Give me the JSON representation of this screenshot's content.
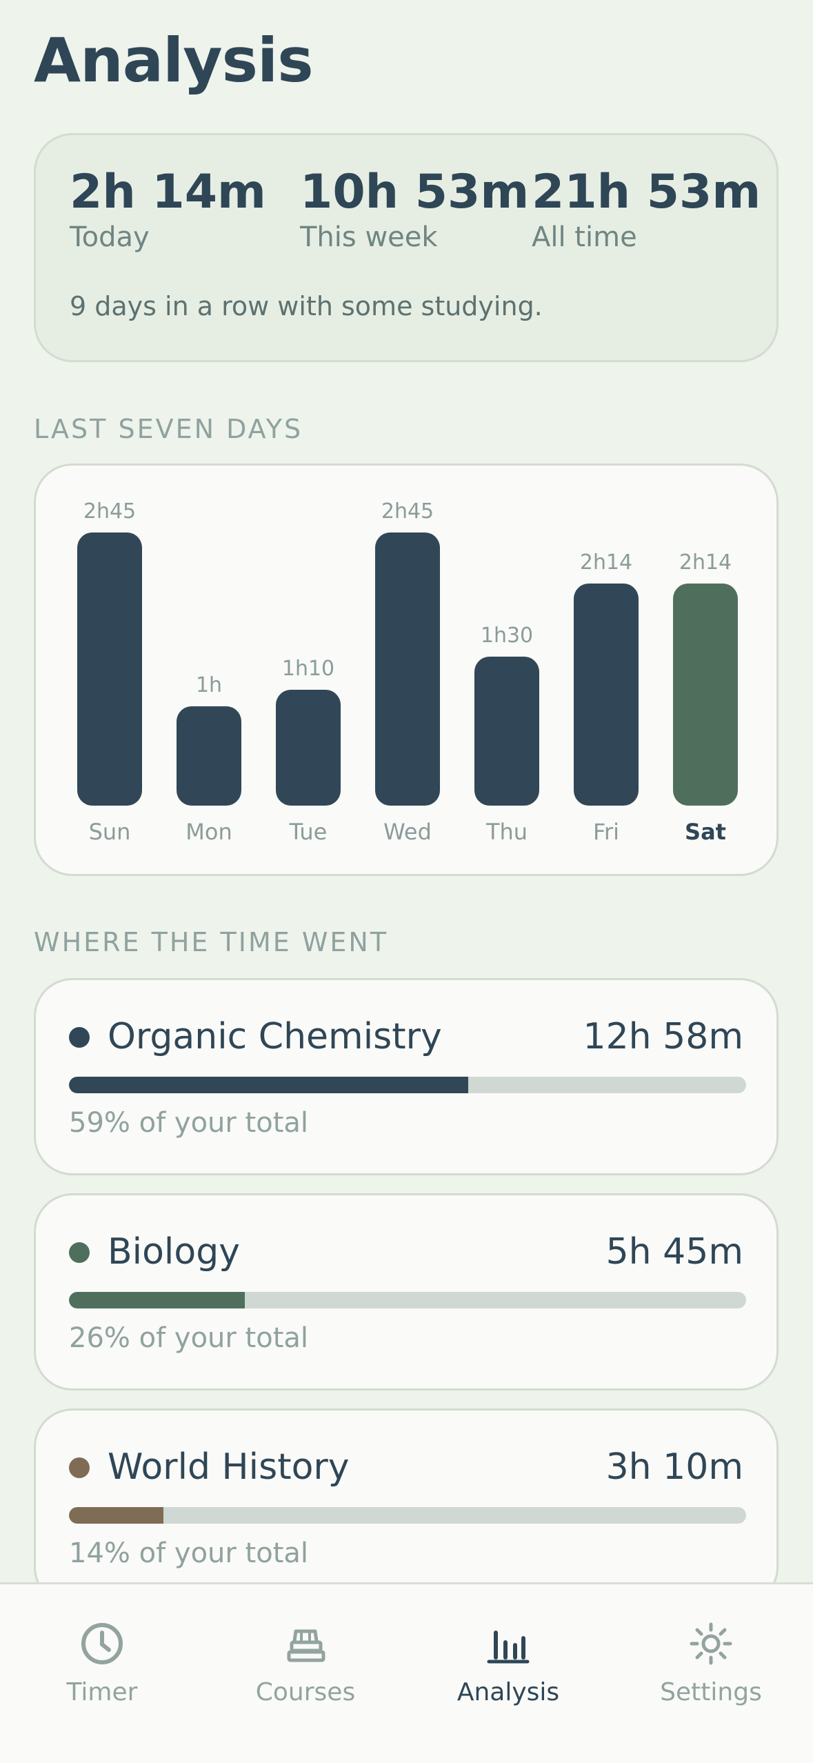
{
  "header": {
    "title": "Analysis"
  },
  "summary": {
    "stats": [
      {
        "value": "2h 14m",
        "label": "Today"
      },
      {
        "value": "10h 53m",
        "label": "This week"
      },
      {
        "value": "21h 53m",
        "label": "All time"
      }
    ],
    "streak_text": "9 days in a row with some studying."
  },
  "last_seven_days": {
    "section_label": "LAST SEVEN DAYS",
    "chart_data": {
      "type": "bar",
      "categories": [
        "Sun",
        "Mon",
        "Tue",
        "Wed",
        "Thu",
        "Fri",
        "Sat"
      ],
      "values": [
        165,
        60,
        70,
        165,
        90,
        134,
        134
      ],
      "value_labels": [
        "2h45",
        "1h",
        "1h10",
        "2h45",
        "1h30",
        "2h14",
        "2h14"
      ],
      "highlighted_category": "Sat",
      "colors": {
        "default": "#314757",
        "highlight": "#4f6f5c"
      },
      "title": "",
      "xlabel": "",
      "ylabel": ""
    }
  },
  "time_breakdown": {
    "section_label": "WHERE THE TIME WENT",
    "courses": [
      {
        "name": "Organic Chemistry",
        "time": "12h 58m",
        "percent_text": "59% of your total",
        "share": 0.59,
        "color": "#314757"
      },
      {
        "name": "Biology",
        "time": "5h 45m",
        "percent_text": "26% of your total",
        "share": 0.26,
        "color": "#4f6f5c"
      },
      {
        "name": "World History",
        "time": "3h 10m",
        "percent_text": "14% of your total",
        "share": 0.14,
        "color": "#7e6c55"
      }
    ]
  },
  "tab_bar": {
    "tabs": [
      {
        "label": "Timer",
        "icon": "clock-icon",
        "active": false
      },
      {
        "label": "Courses",
        "icon": "books-icon",
        "active": false
      },
      {
        "label": "Analysis",
        "icon": "bar-chart-icon",
        "active": true
      },
      {
        "label": "Settings",
        "icon": "sun-gear-icon",
        "active": false
      }
    ]
  }
}
